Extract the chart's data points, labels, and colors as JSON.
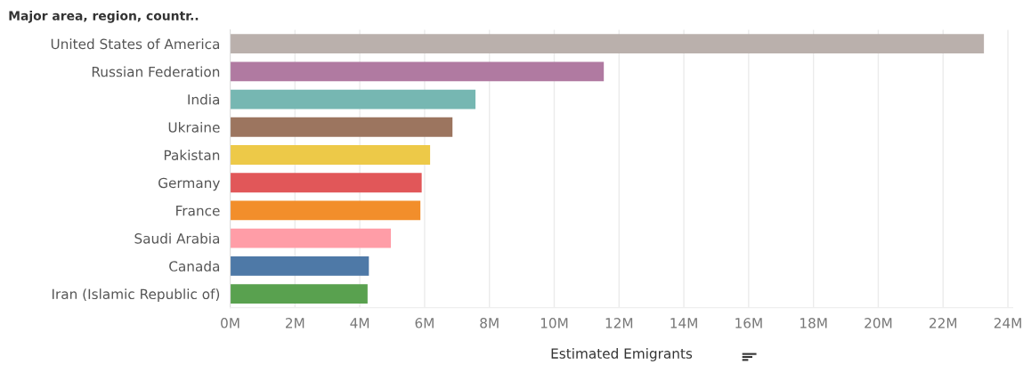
{
  "chart_data": {
    "type": "bar",
    "orientation": "horizontal",
    "ylabel": "Major area, region, countr..",
    "xlabel": "Estimated Emigrants",
    "categories": [
      "United States of America",
      "Russian Federation",
      "India",
      "Ukraine",
      "Pakistan",
      "Germany",
      "France",
      "Saudi Arabia",
      "Canada",
      "Iran (Islamic Republic of)"
    ],
    "values": [
      23.26,
      11.53,
      7.57,
      6.86,
      6.17,
      5.91,
      5.87,
      4.96,
      4.28,
      4.24
    ],
    "colors": [
      "#bab0ac",
      "#b07aa1",
      "#76b7b2",
      "#9c755f",
      "#edc948",
      "#e15759",
      "#f28e2b",
      "#ff9da7",
      "#4e79a7",
      "#59a14f"
    ],
    "xlim": [
      0,
      24.15
    ],
    "xticks": [
      {
        "value": 0,
        "label": "0M"
      },
      {
        "value": 2,
        "label": "2M"
      },
      {
        "value": 4,
        "label": "4M"
      },
      {
        "value": 6,
        "label": "6M"
      },
      {
        "value": 8,
        "label": "8M"
      },
      {
        "value": 10,
        "label": "10M"
      },
      {
        "value": 12,
        "label": "12M"
      },
      {
        "value": 14,
        "label": "14M"
      },
      {
        "value": 16,
        "label": "16M"
      },
      {
        "value": 18,
        "label": "18M"
      },
      {
        "value": 20,
        "label": "20M"
      },
      {
        "value": 22,
        "label": "22M"
      },
      {
        "value": 24,
        "label": "24M"
      }
    ],
    "grid": "x"
  }
}
